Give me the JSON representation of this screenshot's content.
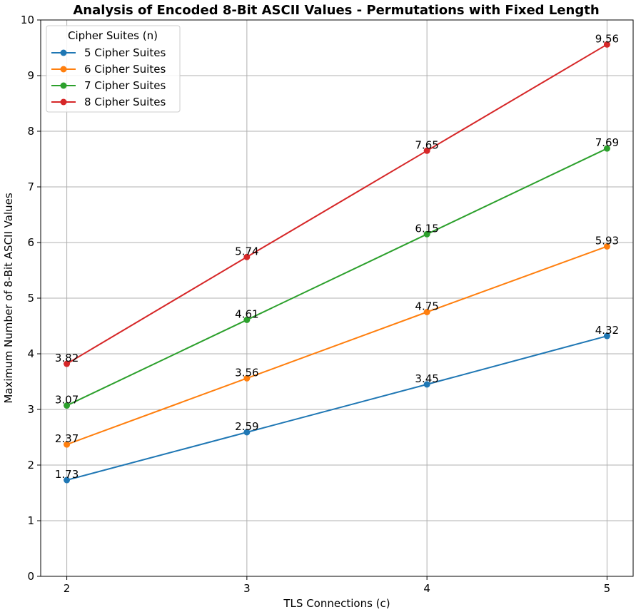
{
  "chart_data": {
    "type": "line",
    "title": "Analysis of Encoded 8-Bit ASCII Values - Permutations with Fixed Length",
    "xlabel": "TLS Connections (c)",
    "ylabel": "Maximum Number of 8-Bit ASCII Values",
    "x": [
      2,
      3,
      4,
      5
    ],
    "x_ticks": [
      "2",
      "3",
      "4",
      "5"
    ],
    "ylim": [
      0,
      10
    ],
    "y_ticks": [
      "0",
      "1",
      "2",
      "3",
      "4",
      "5",
      "6",
      "7",
      "8",
      "9",
      "10"
    ],
    "grid": true,
    "legend": {
      "title": "Cipher Suites (n)",
      "placement": "top-left"
    },
    "series": [
      {
        "name": "5 Cipher Suites",
        "color": "#1f77b4",
        "values": [
          1.73,
          2.59,
          3.45,
          4.32
        ],
        "labels": [
          "1.73",
          "2.59",
          "3.45",
          "4.32"
        ]
      },
      {
        "name": "6 Cipher Suites",
        "color": "#ff7f0e",
        "values": [
          2.37,
          3.56,
          4.75,
          5.93
        ],
        "labels": [
          "2.37",
          "3.56",
          "4.75",
          "5.93"
        ]
      },
      {
        "name": "7 Cipher Suites",
        "color": "#2ca02c",
        "values": [
          3.07,
          4.61,
          6.15,
          7.69
        ],
        "labels": [
          "3.07",
          "4.61",
          "6.15",
          "7.69"
        ]
      },
      {
        "name": "8 Cipher Suites",
        "color": "#d62728",
        "values": [
          3.82,
          5.74,
          7.65,
          9.56
        ],
        "labels": [
          "3.82",
          "5.74",
          "7.65",
          "9.56"
        ]
      }
    ]
  }
}
